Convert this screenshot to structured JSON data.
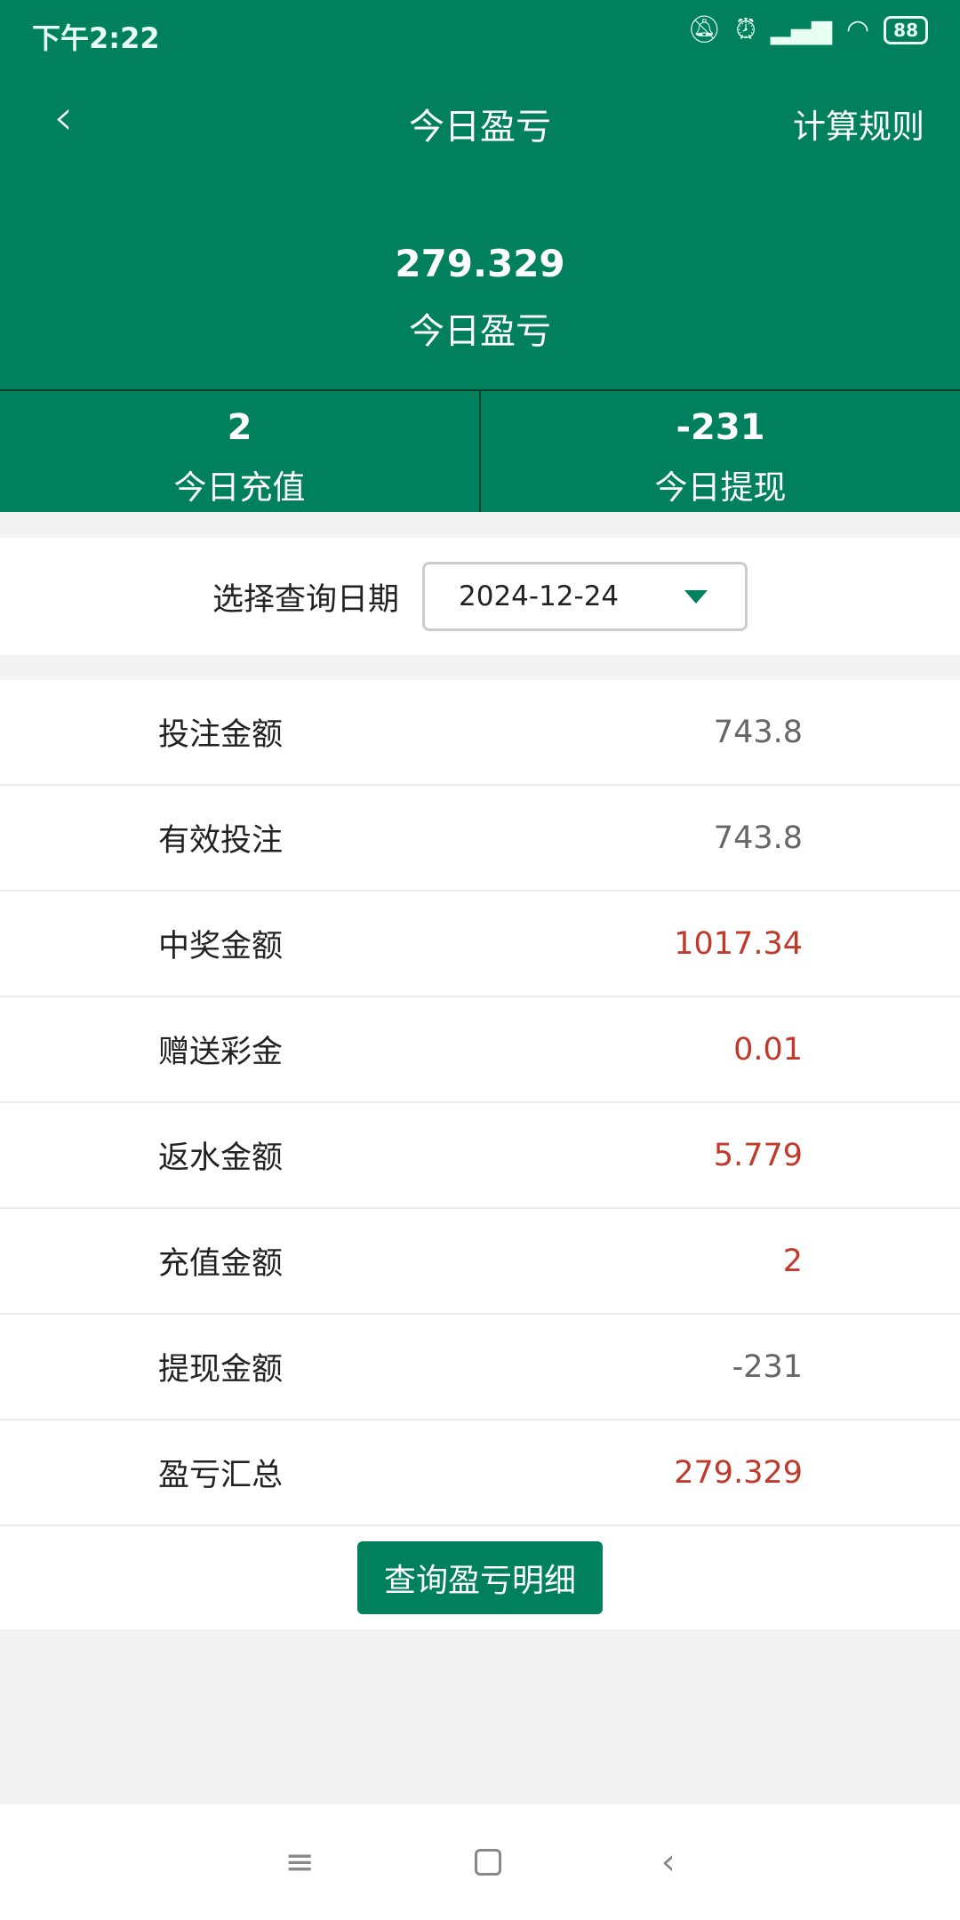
{
  "status_bar": {
    "time": "下午2:22",
    "battery": "88",
    "icons": [
      "mute-bell-icon",
      "alarm-icon",
      "hd-signal-icon",
      "wifi-icon",
      "battery-icon"
    ]
  },
  "header": {
    "title": "今日盈亏",
    "right_action": "计算规则",
    "total_value": "279.329",
    "total_label": "今日盈亏",
    "stats": [
      {
        "value": "2",
        "label": "今日充值"
      },
      {
        "value": "-231",
        "label": "今日提现"
      }
    ]
  },
  "date_filter": {
    "label": "选择查询日期",
    "value": "2024-12-24"
  },
  "rows": [
    {
      "label": "投注金额",
      "value": "743.8",
      "highlight": false
    },
    {
      "label": "有效投注",
      "value": "743.8",
      "highlight": false
    },
    {
      "label": "中奖金额",
      "value": "1017.34",
      "highlight": true
    },
    {
      "label": "赠送彩金",
      "value": "0.01",
      "highlight": true
    },
    {
      "label": "返水金额",
      "value": "5.779",
      "highlight": true
    },
    {
      "label": "充值金额",
      "value": "2",
      "highlight": true
    },
    {
      "label": "提现金额",
      "value": "-231",
      "highlight": false
    },
    {
      "label": "盈亏汇总",
      "value": "279.329",
      "highlight": true
    }
  ],
  "detail_button": "查询盈亏明细",
  "colors": {
    "brand": "#00805c",
    "highlight": "#c0392b"
  }
}
